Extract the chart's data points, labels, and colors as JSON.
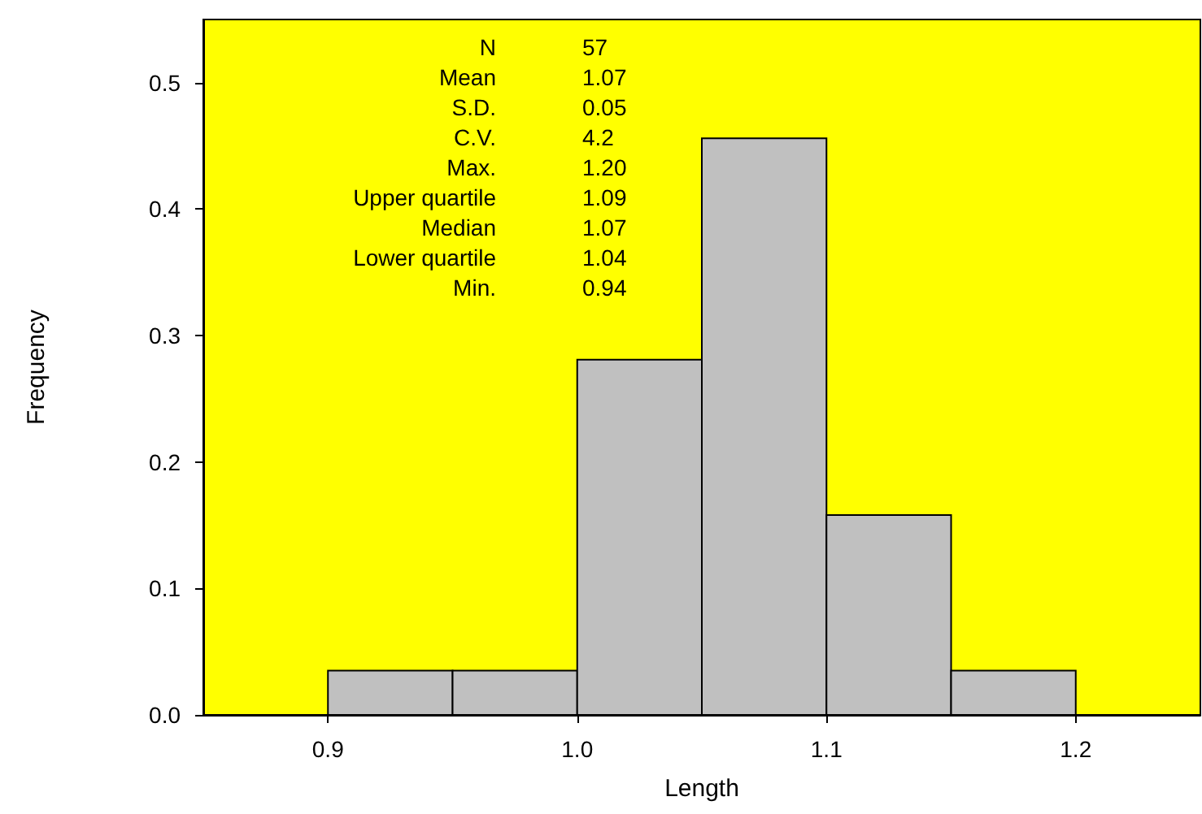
{
  "chart_data": {
    "type": "histogram",
    "xlabel": "Length",
    "ylabel": "Frequency",
    "bins": [
      0.9,
      0.95,
      1.0,
      1.05,
      1.1,
      1.15,
      1.2
    ],
    "values": [
      0.035,
      0.035,
      0.281,
      0.456,
      0.158,
      0.035
    ],
    "color": "#c0c0c0",
    "xlim": [
      0.85,
      1.25
    ],
    "xticks": [
      0.9,
      {
        "value": 1,
        "label": "1.0"
      },
      1.1,
      1.2
    ],
    "ylim": [
      0,
      0.55
    ],
    "yticks": [
      {
        "value": 0,
        "label": "0.0"
      },
      0.1,
      0.2,
      0.3,
      0.4,
      0.5
    ],
    "grid": false,
    "annotations": [
      "N 57",
      "Mean 1.07",
      "S.D. 0.05",
      "C.V. 4.2",
      "Max. 1.20",
      "Upper quartile 1.09",
      "Median 1.07",
      "Lower quartile 1.04",
      "Min. 0.94"
    ]
  }
}
